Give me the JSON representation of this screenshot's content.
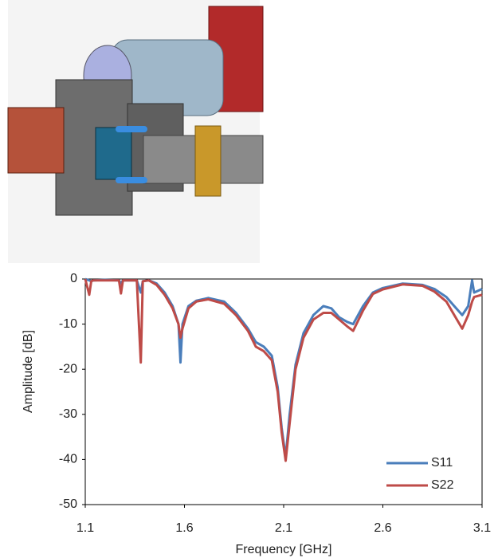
{
  "chart_data": {
    "type": "line",
    "x_label": "Frequency [GHz]",
    "y_label": "Amplitude [dB]",
    "x": [
      1.1,
      1.12,
      1.13,
      1.14,
      1.2,
      1.27,
      1.28,
      1.29,
      1.36,
      1.38,
      1.39,
      1.42,
      1.46,
      1.5,
      1.54,
      1.57,
      1.58,
      1.59,
      1.62,
      1.66,
      1.72,
      1.8,
      1.86,
      1.92,
      1.96,
      2.0,
      2.04,
      2.07,
      2.09,
      2.11,
      2.13,
      2.16,
      2.2,
      2.25,
      2.3,
      2.34,
      2.38,
      2.42,
      2.45,
      2.5,
      2.55,
      2.6,
      2.7,
      2.8,
      2.86,
      2.92,
      2.96,
      3.0,
      3.03,
      3.05,
      3.06,
      3.1
    ],
    "series": [
      {
        "name": "S11",
        "color": "#4a7ebb",
        "values": [
          0,
          -0.3,
          -0.5,
          -0.3,
          -0.2,
          -0.3,
          -1,
          -0.3,
          -0.3,
          -3,
          -0.5,
          -0.3,
          -1,
          -3,
          -6,
          -10,
          -18.5,
          -10,
          -6,
          -4.8,
          -4.2,
          -5,
          -7.5,
          -11,
          -14,
          -15,
          -17,
          -24,
          -33,
          -39.5,
          -30,
          -19,
          -12,
          -8,
          -6,
          -6.5,
          -8.5,
          -9.5,
          -10,
          -6,
          -3,
          -2,
          -1,
          -1.3,
          -2.2,
          -4,
          -6,
          -8,
          -6,
          -0.3,
          -3,
          -2.2
        ]
      },
      {
        "name": "S22",
        "color": "#be4b48",
        "values": [
          0,
          -3.5,
          -0.5,
          -0.3,
          -0.3,
          -0.3,
          -3.2,
          -0.3,
          -0.3,
          -18.5,
          -0.5,
          -0.3,
          -1.3,
          -3.5,
          -6.5,
          -10,
          -13,
          -11,
          -6.5,
          -5,
          -4.5,
          -5.5,
          -8,
          -11.5,
          -15,
          -16,
          -18,
          -25,
          -34,
          -40.3,
          -32,
          -20,
          -13,
          -9,
          -7.5,
          -7.5,
          -9,
          -10.5,
          -11.5,
          -7,
          -3.3,
          -2.3,
          -1.2,
          -1.5,
          -2.8,
          -5,
          -8,
          -11,
          -8,
          -5,
          -4,
          -3.5
        ]
      }
    ],
    "xlim": [
      1.1,
      3.1
    ],
    "xticks": [
      1.1,
      1.6,
      2.1,
      2.6,
      3.1
    ],
    "ylim": [
      -50,
      0
    ],
    "yticks": [
      0,
      -10,
      -20,
      -30,
      -40,
      -50
    ],
    "grid": false,
    "legend": "lower right"
  }
}
